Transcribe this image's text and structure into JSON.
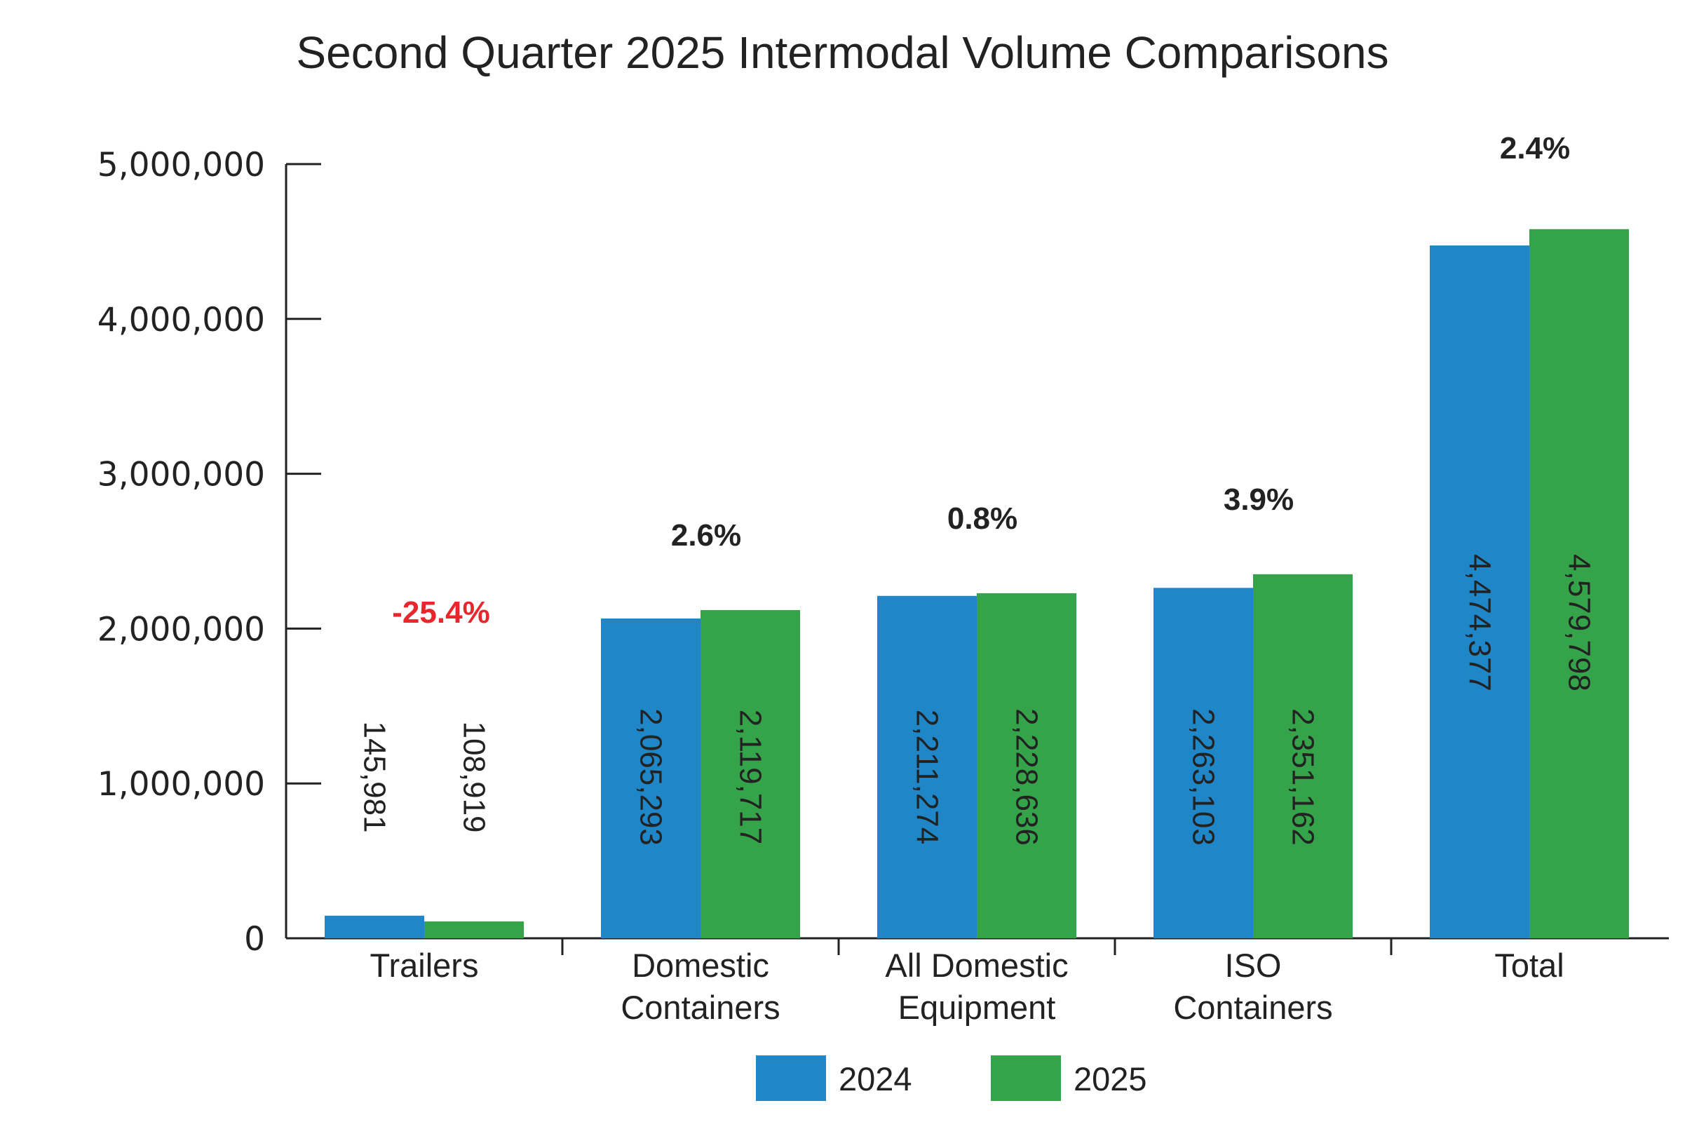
{
  "chart_data": {
    "type": "bar",
    "title": "Second Quarter 2025 Intermodal Volume Comparisons",
    "categories": [
      [
        "Trailers"
      ],
      [
        "Domestic",
        "Containers"
      ],
      [
        "All Domestic",
        "Equipment"
      ],
      [
        "ISO",
        "Containers"
      ],
      [
        "Total"
      ]
    ],
    "series": [
      {
        "name": "2024",
        "color": "#1f87c8",
        "values": [
          145981,
          2065293,
          2211274,
          2263103,
          4474377
        ],
        "labels": [
          "145,981",
          "2,065,293",
          "2,211,274",
          "2,263,103",
          "4,474,377"
        ]
      },
      {
        "name": "2025",
        "color": "#35a349",
        "values": [
          108919,
          2119717,
          2228636,
          2351162,
          4579798
        ],
        "labels": [
          "108,919",
          "2,119,717",
          "2,228,636",
          "2,351,162",
          "4,579,798"
        ]
      }
    ],
    "changes": [
      {
        "text": "-25.4%",
        "color": "#e8262b"
      },
      {
        "text": "2.6%",
        "color": "#222222"
      },
      {
        "text": "0.8%",
        "color": "#222222"
      },
      {
        "text": "3.9%",
        "color": "#222222"
      },
      {
        "text": "2.4%",
        "color": "#222222"
      }
    ],
    "yticks": [
      {
        "value": 0,
        "label": "0"
      },
      {
        "value": 1000000,
        "label": "1,000,000"
      },
      {
        "value": 2000000,
        "label": "2,000,000"
      },
      {
        "value": 3000000,
        "label": "3,000,000"
      },
      {
        "value": 4000000,
        "label": "4,000,000"
      },
      {
        "value": 5000000,
        "label": "5,000,000"
      }
    ],
    "ylim": [
      0,
      5000000
    ],
    "legend_position": "bottom",
    "grid": false
  }
}
